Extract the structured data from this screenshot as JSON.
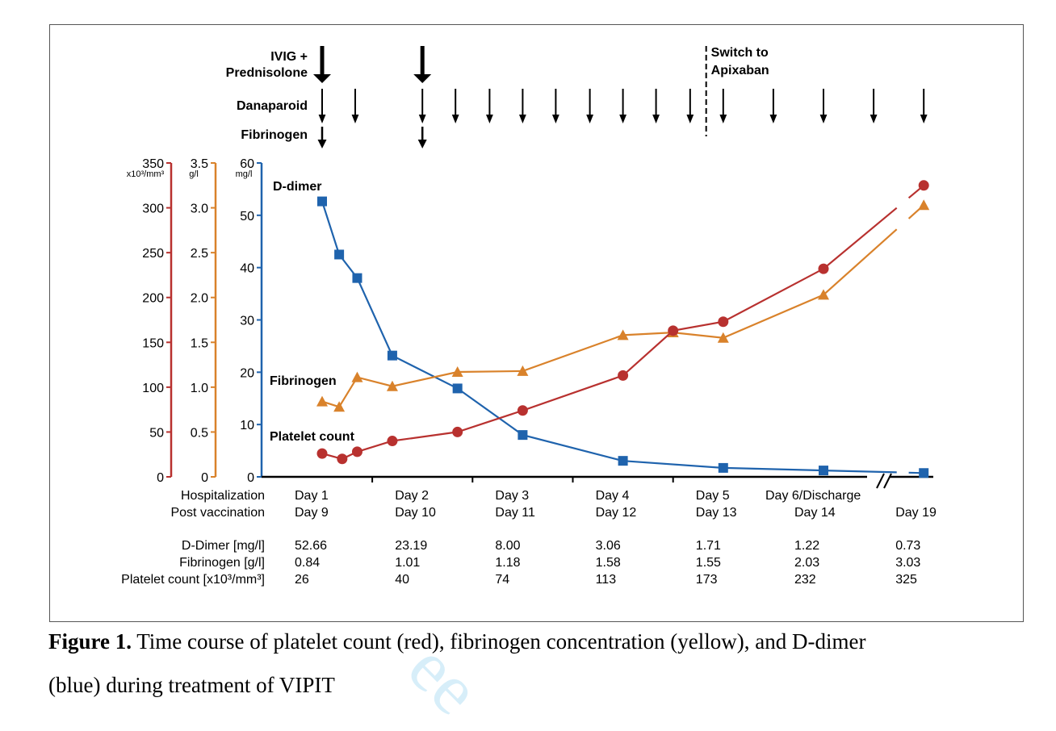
{
  "figure": {
    "caption_label": "Figure 1.",
    "caption_line1": " Time course of platelet count (red), fibrinogen concentration (yellow), and D-dimer",
    "caption_line2": "(blue) during treatment of VIPIT",
    "watermark": "ee"
  },
  "colors": {
    "platelet": "#b8312f",
    "fibrinogen": "#d9822b",
    "ddimer": "#1f63ad",
    "text": "#000000"
  },
  "treatments": {
    "ivig_label": [
      "IVIG +",
      "Prednisolone"
    ],
    "danaparoid_label": "Danaparoid",
    "fibrinogen_label": "Fibrinogen",
    "switch_label": [
      "Switch to",
      "Apixaban"
    ],
    "ivig_doses_x": [
      1.0,
      2.0
    ],
    "danaparoid_doses_x": [
      1.0,
      1.33,
      2.0,
      2.33,
      2.67,
      3.0,
      3.33,
      3.67,
      4.0,
      4.33,
      4.67,
      5.0,
      5.5,
      6.0,
      6.5,
      7.0
    ],
    "fibrinogen_doses_x": [
      1.0,
      2.0
    ],
    "switch_x": 4.83
  },
  "chart_data": {
    "type": "line",
    "x_ticks": [
      {
        "x": 1,
        "row1": "Day 1",
        "row2": "Day 9"
      },
      {
        "x": 2,
        "row1": "Day 2",
        "row2": "Day 10"
      },
      {
        "x": 3,
        "row1": "Day 3",
        "row2": "Day 11"
      },
      {
        "x": 4,
        "row1": "Day 4",
        "row2": "Day 12"
      },
      {
        "x": 5,
        "row1": "Day 5",
        "row2": "Day 13"
      },
      {
        "x": 6,
        "row1": "Day 6/Discharge",
        "row2": "Day 14"
      },
      {
        "x": 7,
        "row1": "",
        "row2": "Day 19"
      }
    ],
    "x_row_labels": [
      "Hospitalization",
      "Post vaccination"
    ],
    "axes": {
      "platelet": {
        "ylim": [
          0,
          350
        ],
        "ticks": [
          0,
          50,
          100,
          150,
          200,
          250,
          300,
          350
        ],
        "unit": "x10³/mm³"
      },
      "fibrinogen": {
        "ylim": [
          0,
          3.5
        ],
        "ticks": [
          "0",
          "0.5",
          "1.0",
          "1.5",
          "2.0",
          "2.5",
          "3.0",
          "3.5"
        ],
        "unit": "g/l"
      },
      "ddimer": {
        "ylim": [
          0,
          60
        ],
        "ticks": [
          0,
          10,
          20,
          30,
          40,
          50,
          60
        ],
        "unit": "mg/l"
      }
    },
    "series": [
      {
        "name": "D-dimer",
        "axis": "ddimer",
        "marker": "square",
        "x": [
          1.0,
          1.17,
          1.35,
          1.7,
          2.35,
          3.0,
          4.0,
          5.0,
          6.0,
          7.0
        ],
        "y": [
          52.66,
          42.5,
          38.0,
          23.19,
          16.9,
          8.0,
          3.06,
          1.71,
          1.22,
          0.73
        ]
      },
      {
        "name": "Fibrinogen",
        "axis": "fibrinogen",
        "marker": "triangle",
        "x": [
          1.0,
          1.17,
          1.35,
          1.7,
          2.35,
          3.0,
          4.0,
          4.5,
          5.0,
          6.0,
          7.0
        ],
        "y": [
          0.84,
          0.78,
          1.11,
          1.01,
          1.17,
          1.18,
          1.58,
          1.61,
          1.55,
          2.03,
          3.03
        ]
      },
      {
        "name": "Platelet count",
        "axis": "platelet",
        "marker": "circle",
        "x": [
          1.0,
          1.2,
          1.35,
          1.7,
          2.35,
          3.0,
          4.0,
          4.5,
          5.0,
          6.0,
          7.0
        ],
        "y": [
          26,
          20,
          28,
          40,
          50,
          74,
          113,
          163,
          173,
          232,
          325
        ]
      }
    ],
    "table": {
      "labels": [
        "D-Dimer [mg/l]",
        "Fibrinogen [g/l]",
        "Platelet count [x10³/mm³]"
      ],
      "rows": [
        [
          "52.66",
          "23.19",
          "8.00",
          "3.06",
          "1.71",
          "1.22",
          "0.73"
        ],
        [
          "0.84",
          "1.01",
          "1.18",
          "1.58",
          "1.55",
          "2.03",
          "3.03"
        ],
        [
          "26",
          "40",
          "74",
          "113",
          "173",
          "232",
          "325"
        ]
      ]
    }
  }
}
